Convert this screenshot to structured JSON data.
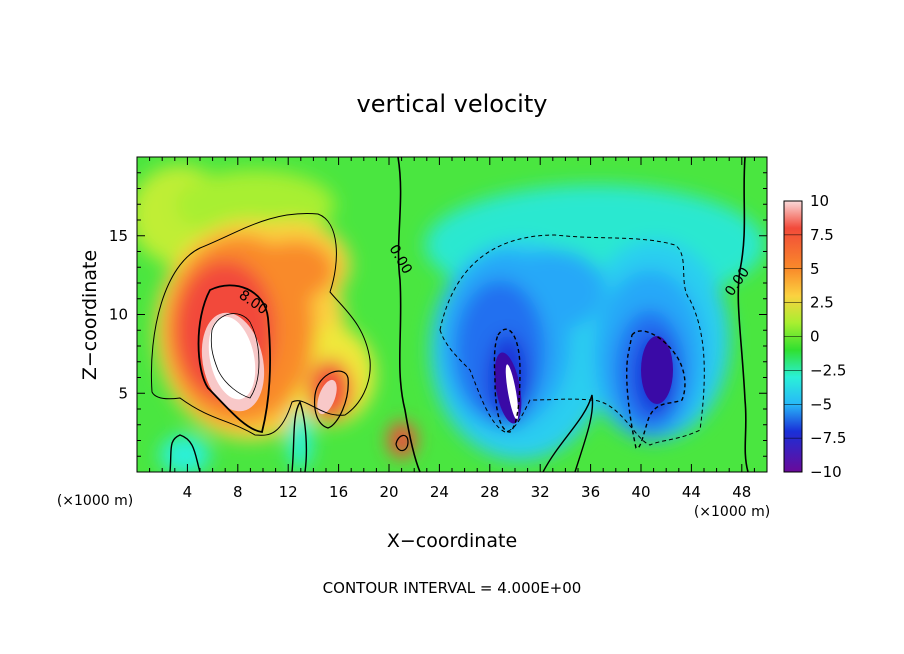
{
  "chart_data": {
    "type": "heatmap",
    "title": "vertical velocity",
    "subtitle": "",
    "xlabel": "X−coordinate",
    "ylabel": "Z−coordinate",
    "x_unit": "(×1000 m)",
    "y_unit": "(×1000 m)",
    "xlim": [
      0,
      50
    ],
    "ylim": [
      0,
      20
    ],
    "x_ticks": [
      4,
      8,
      12,
      16,
      20,
      24,
      28,
      32,
      36,
      40,
      44,
      48
    ],
    "x_tick_labels": [
      "4",
      "8",
      "12",
      "16",
      "20",
      "24",
      "28",
      "32",
      "36",
      "40",
      "44",
      "48"
    ],
    "y_ticks": [
      5,
      10,
      15
    ],
    "y_tick_labels": [
      "5",
      "10",
      "15"
    ],
    "colorbar": {
      "min": -10,
      "max": 10,
      "ticks": [
        10,
        7.5,
        5,
        2.5,
        0,
        -2.5,
        -5,
        -7.5,
        -10
      ],
      "tick_labels": [
        "10",
        "7.5",
        "5",
        "2.5",
        "0",
        "−2.5",
        "−5",
        "−7.5",
        "−10"
      ],
      "colors": [
        "#f8c8c8",
        "#f24a3a",
        "#f98a2a",
        "#fbd240",
        "#e8f53a",
        "#a8ef30",
        "#30e030",
        "#25e38a",
        "#2af0d8",
        "#28b8f8",
        "#2070f0",
        "#1a30d8",
        "#3a0aa6",
        "#6a0a9a"
      ]
    },
    "contour_interval": "CONTOUR INTERVAL = 4.000E+00",
    "contour_labels": [
      "8.00",
      "0.00",
      "0.00"
    ],
    "features": [
      {
        "type": "updraft",
        "x": 7.5,
        "z": 8.0,
        "value": 10.5
      },
      {
        "type": "updraft",
        "x": 13.0,
        "z": 11.0,
        "value": 5.0
      },
      {
        "type": "updraft",
        "x": 14.5,
        "z": 5.0,
        "value": 9.0
      },
      {
        "type": "updraft",
        "x": 20.8,
        "z": 2.0,
        "value": 8.0
      },
      {
        "type": "downdraft",
        "x": 29.5,
        "z": 6.5,
        "value": -10.5
      },
      {
        "type": "downdraft",
        "x": 34.0,
        "z": 11.0,
        "value": -6.0
      },
      {
        "type": "downdraft",
        "x": 40.5,
        "z": 6.5,
        "value": -9.0
      }
    ]
  }
}
